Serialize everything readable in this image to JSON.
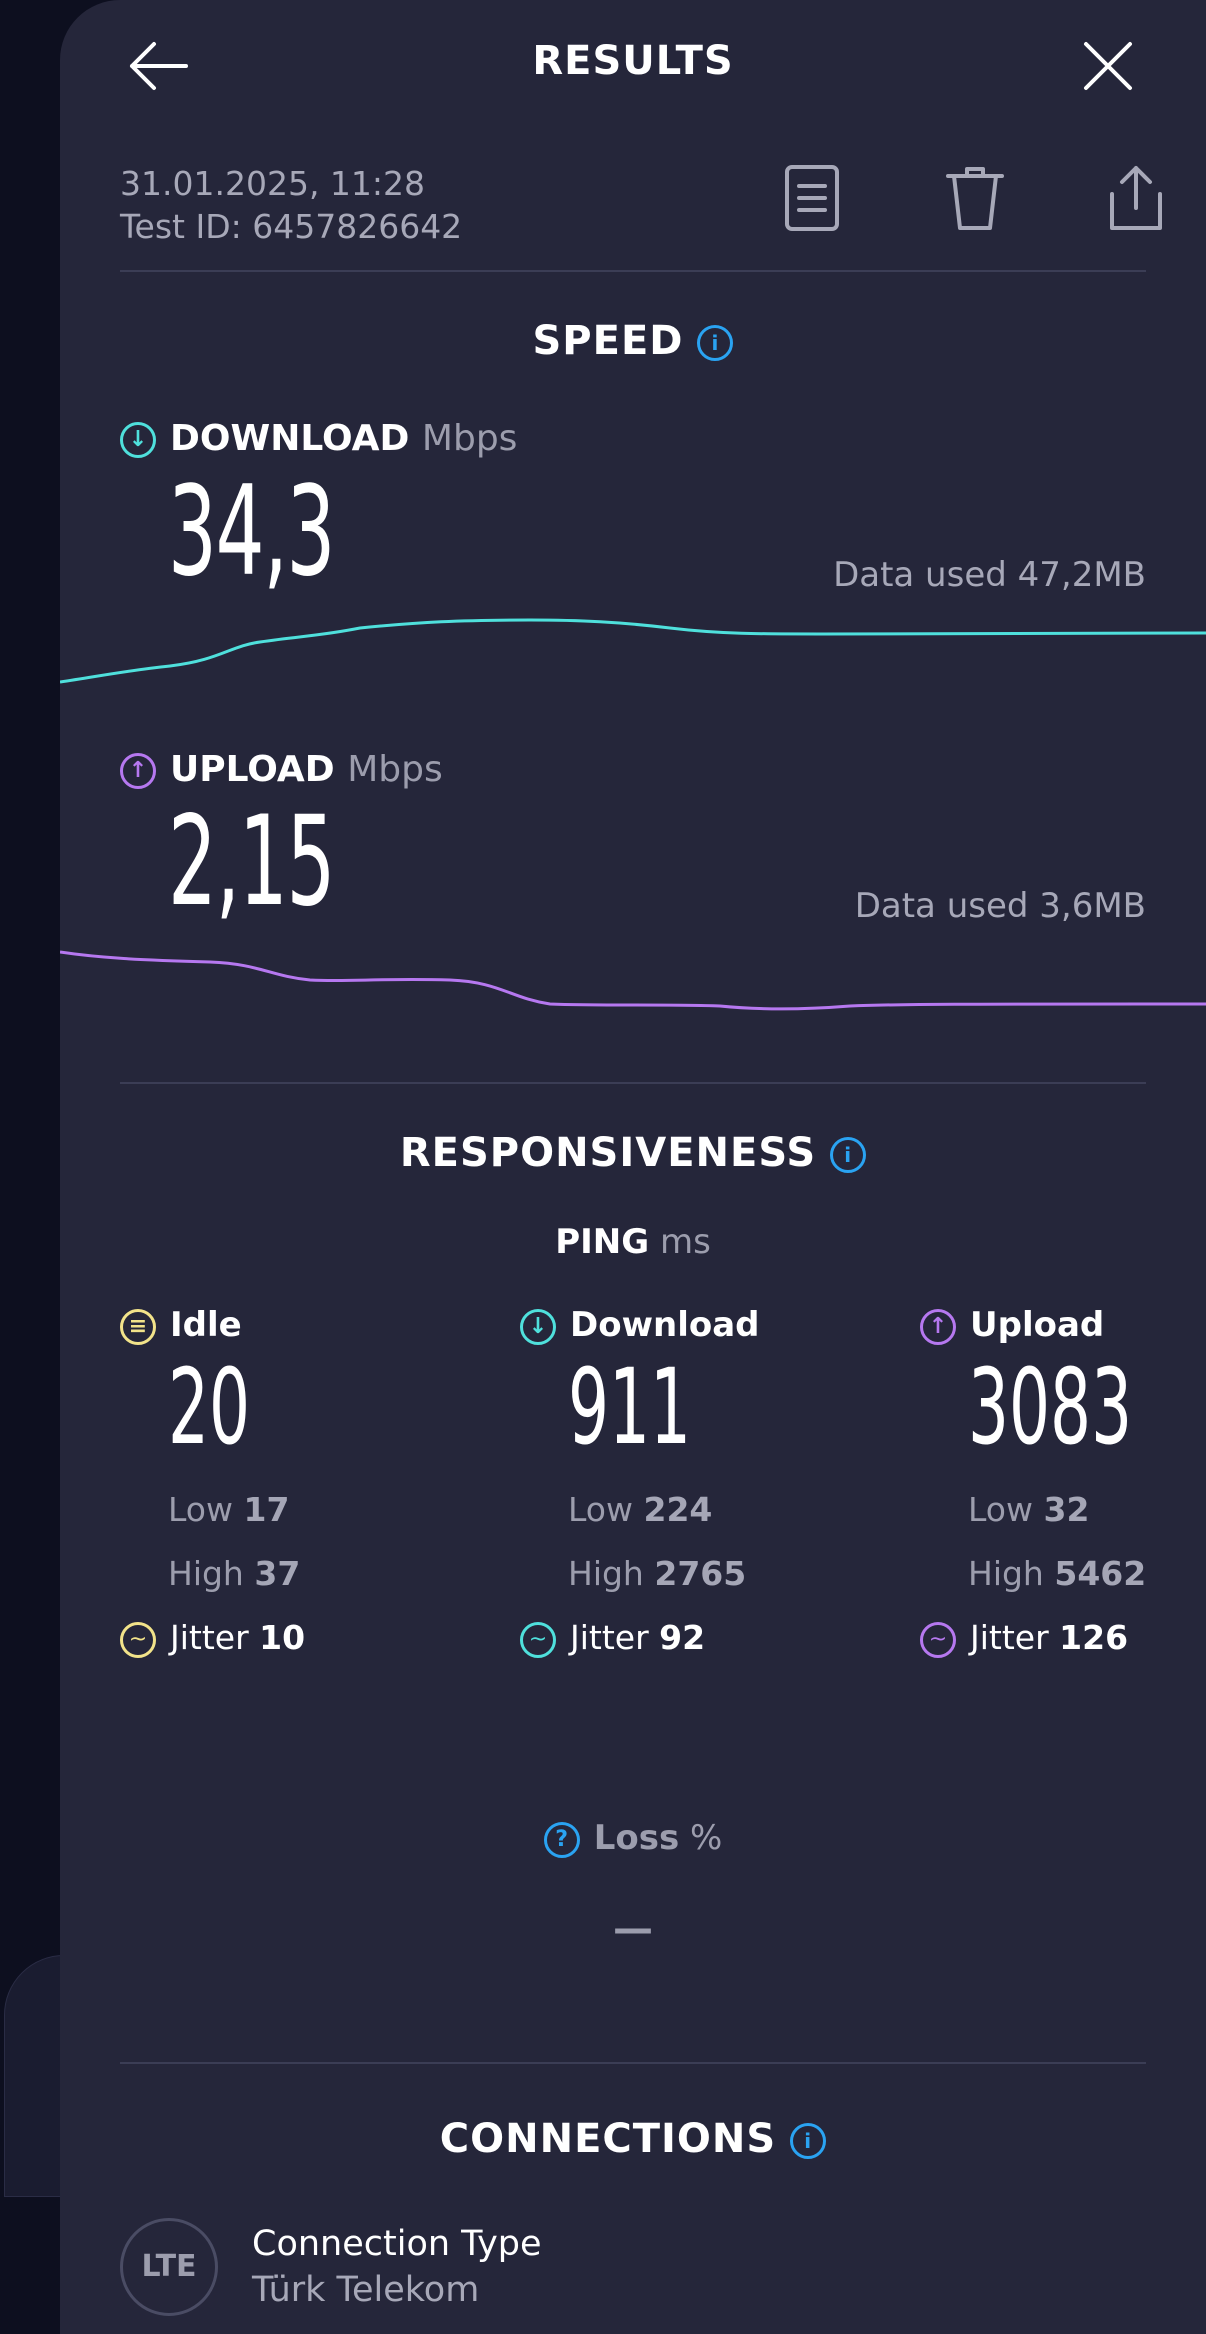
{
  "header": {
    "title": "RESULTS",
    "back_icon": "arrow-left-icon",
    "close_icon": "close-icon"
  },
  "meta": {
    "datetime": "31.01.2025, 11:28",
    "test_id": "Test ID: 6457826642",
    "actions": [
      "document-icon",
      "trash-icon",
      "share-icon"
    ]
  },
  "speed": {
    "title": "SPEED",
    "download": {
      "label": "DOWNLOAD",
      "unit": "Mbps",
      "value": "34,3",
      "data_used": "Data used 47,2MB",
      "color": "#4fe0dc"
    },
    "upload": {
      "label": "UPLOAD",
      "unit": "Mbps",
      "value": "2,15",
      "data_used": "Data used 3,6MB",
      "color": "#b678f0"
    }
  },
  "responsiveness": {
    "title": "RESPONSIVENESS",
    "ping_label": "PING",
    "ping_unit": "ms",
    "columns": [
      {
        "label": "Idle",
        "value": "20",
        "low_label": "Low",
        "low": "17",
        "high_label": "High",
        "high": "37",
        "jitter_label": "Jitter",
        "jitter": "10",
        "color": "#f2e38a"
      },
      {
        "label": "Download",
        "value": "911",
        "low_label": "Low",
        "low": "224",
        "high_label": "High",
        "high": "2765",
        "jitter_label": "Jitter",
        "jitter": "92",
        "color": "#4fe0dc"
      },
      {
        "label": "Upload",
        "value": "3083",
        "low_label": "Low",
        "low": "32",
        "high_label": "High",
        "high": "5462",
        "jitter_label": "Jitter",
        "jitter": "126",
        "color": "#b678f0"
      }
    ],
    "loss_label": "Loss",
    "loss_unit": "%",
    "loss_value": "—"
  },
  "connections": {
    "title": "CONNECTIONS",
    "badge": "LTE",
    "type_label": "Connection Type",
    "provider": "Türk Telekom"
  }
}
